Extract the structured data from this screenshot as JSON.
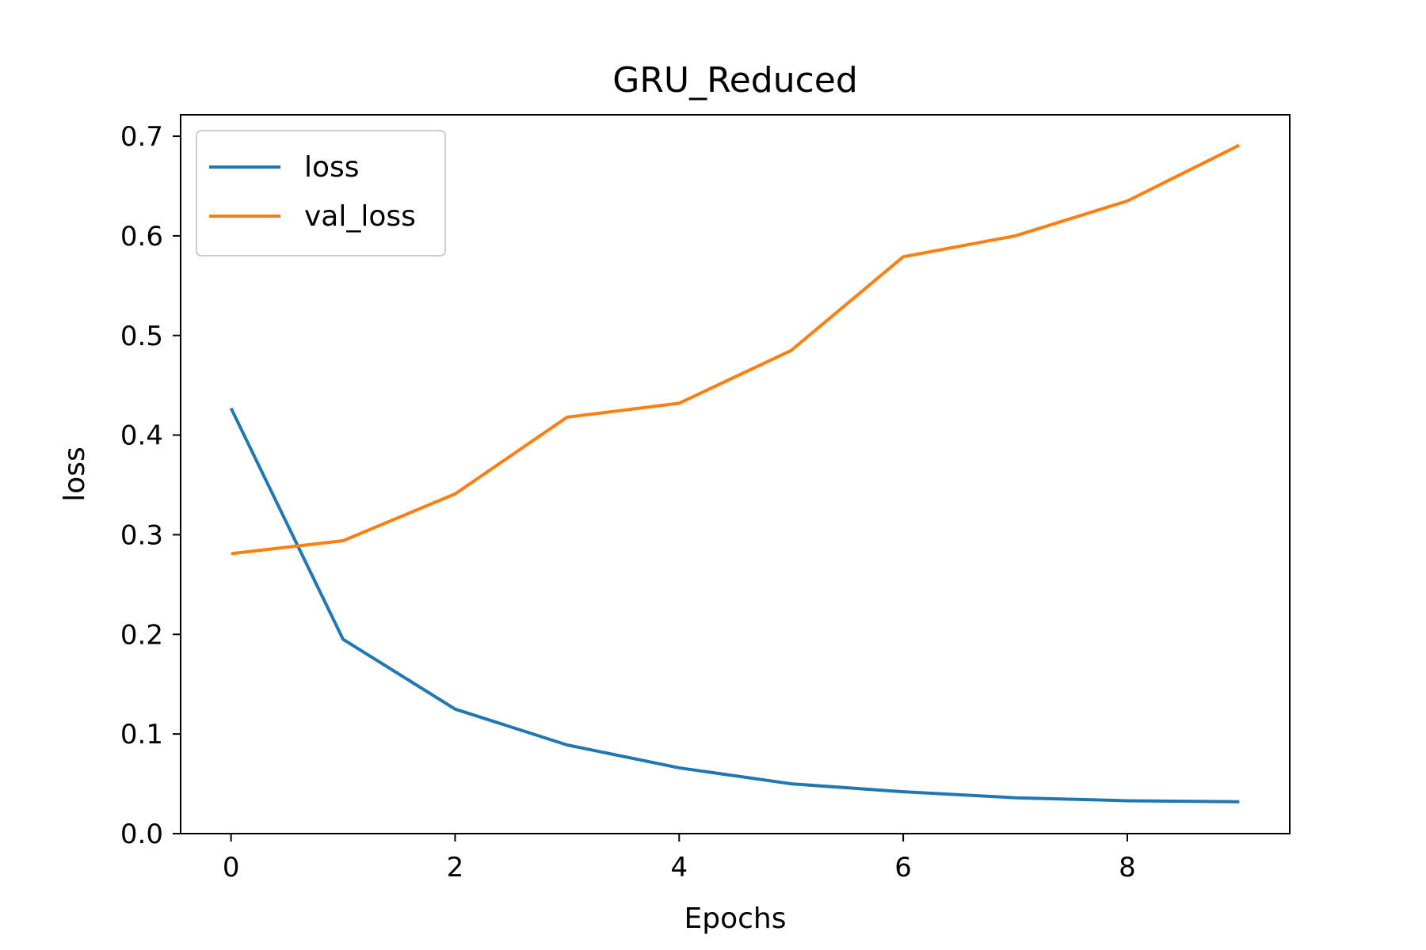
{
  "chart_data": {
    "type": "line",
    "title": "GRU_Reduced",
    "xlabel": "Epochs",
    "ylabel": "loss",
    "x": [
      0,
      1,
      2,
      3,
      4,
      5,
      6,
      7,
      8,
      9
    ],
    "series": [
      {
        "name": "loss",
        "color": "#1f77b4",
        "values": [
          0.427,
          0.195,
          0.125,
          0.089,
          0.066,
          0.05,
          0.042,
          0.036,
          0.033,
          0.032
        ]
      },
      {
        "name": "val_loss",
        "color": "#ff7f0e",
        "values": [
          0.281,
          0.294,
          0.341,
          0.418,
          0.432,
          0.485,
          0.579,
          0.6,
          0.635,
          0.691
        ]
      }
    ],
    "xlim": [
      -0.45,
      9.45
    ],
    "ylim": [
      0.0,
      0.7215
    ],
    "xticks": [
      0,
      2,
      4,
      6,
      8
    ],
    "xtick_labels": [
      "0",
      "2",
      "4",
      "6",
      "8"
    ],
    "yticks": [
      0.0,
      0.1,
      0.2,
      0.3,
      0.4,
      0.5,
      0.6,
      0.7
    ],
    "ytick_labels": [
      "0.0",
      "0.1",
      "0.2",
      "0.3",
      "0.4",
      "0.5",
      "0.6",
      "0.7"
    ],
    "grid": false,
    "legend_position": "top-left"
  }
}
